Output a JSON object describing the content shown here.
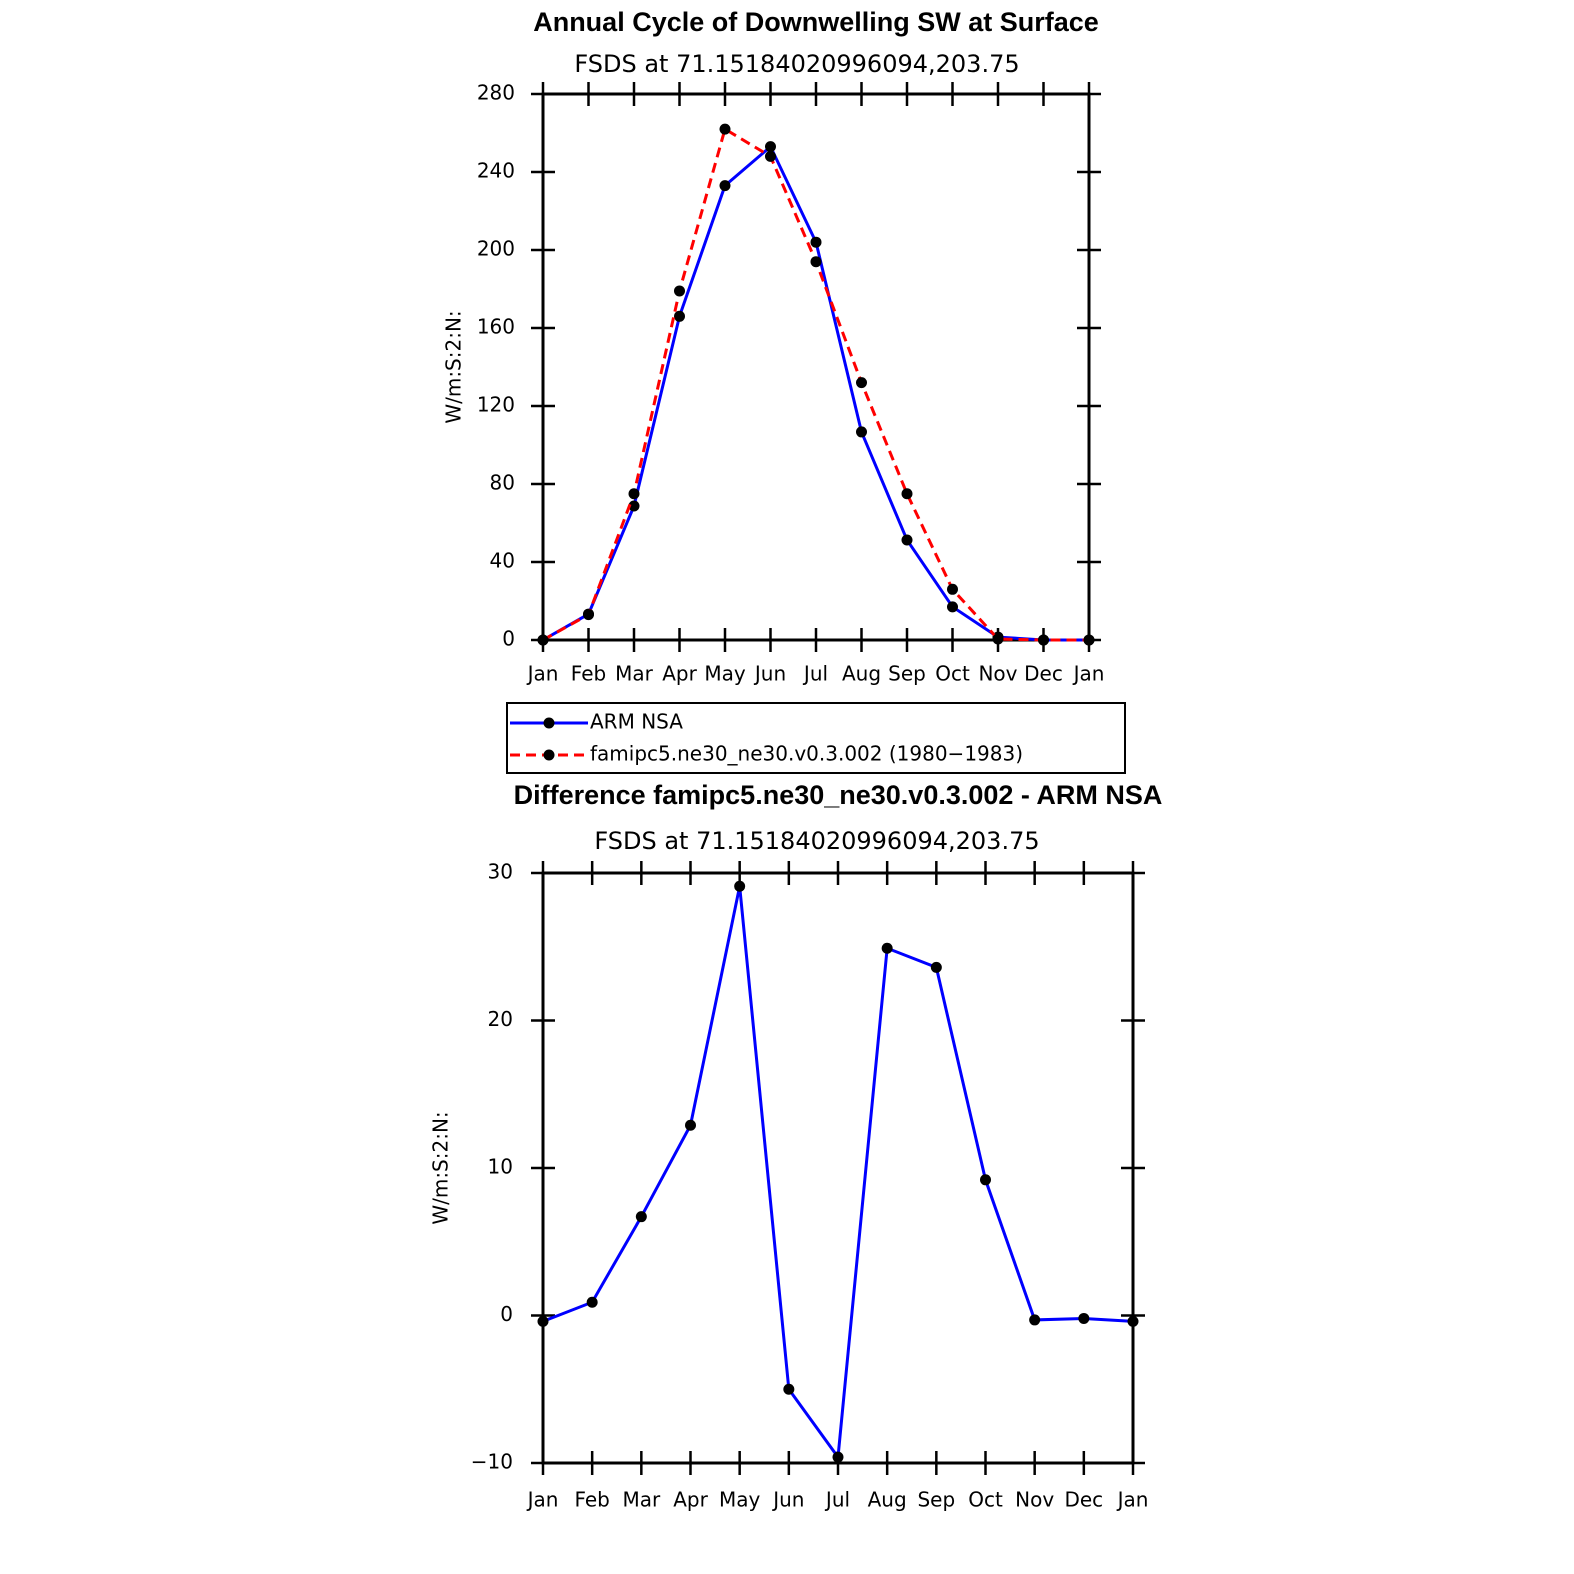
{
  "chart_data": [
    {
      "type": "line",
      "title": "Annual Cycle of Downwelling SW at Surface",
      "subtitle": "FSDS at 71.15184020996094,203.75",
      "y_label": "W/m:S:2:N:",
      "categories": [
        "Jan",
        "Feb",
        "Mar",
        "Apr",
        "May",
        "Jun",
        "Jul",
        "Aug",
        "Sep",
        "Oct",
        "Nov",
        "Dec",
        "Jan"
      ],
      "series": [
        {
          "name": "ARM NSA",
          "color": "#0000ff",
          "line_style": "solid",
          "values": [
            0,
            13.3,
            68.7,
            166,
            233,
            253,
            204,
            106.7,
            51.3,
            17,
            1.5,
            0,
            0
          ]
        },
        {
          "name": "famipc5.ne30_ne30.v0.3.002 (1980−1983)",
          "color": "#ff0000",
          "line_style": "dashed",
          "values": [
            0,
            13,
            75,
            179,
            262,
            248,
            194,
            132,
            75,
            26,
            0.5,
            0,
            0
          ]
        }
      ],
      "marker_color": "#000000",
      "ylim": [
        0,
        280
      ],
      "yticks": [
        0,
        40,
        80,
        120,
        160,
        200,
        240,
        280
      ],
      "legend": "below"
    },
    {
      "type": "line",
      "title": "Difference famipc5.ne30_ne30.v0.3.002 - ARM NSA",
      "subtitle": "FSDS at 71.15184020996094,203.75",
      "y_label": "W/m:S:2:N:",
      "categories": [
        "Jan",
        "Feb",
        "Mar",
        "Apr",
        "May",
        "Jun",
        "Jul",
        "Aug",
        "Sep",
        "Oct",
        "Nov",
        "Dec",
        "Jan"
      ],
      "series": [
        {
          "color": "#0000ff",
          "line_style": "solid",
          "values": [
            -0.4,
            0.9,
            6.7,
            12.9,
            29.1,
            -5.0,
            -9.6,
            24.9,
            23.6,
            9.2,
            -0.3,
            -0.2,
            -0.4
          ]
        }
      ],
      "marker_color": "#000000",
      "ylim": [
        -10,
        30
      ],
      "yticks": [
        {
          "value": -10,
          "label": "−10"
        },
        0,
        10,
        20,
        30
      ]
    }
  ]
}
